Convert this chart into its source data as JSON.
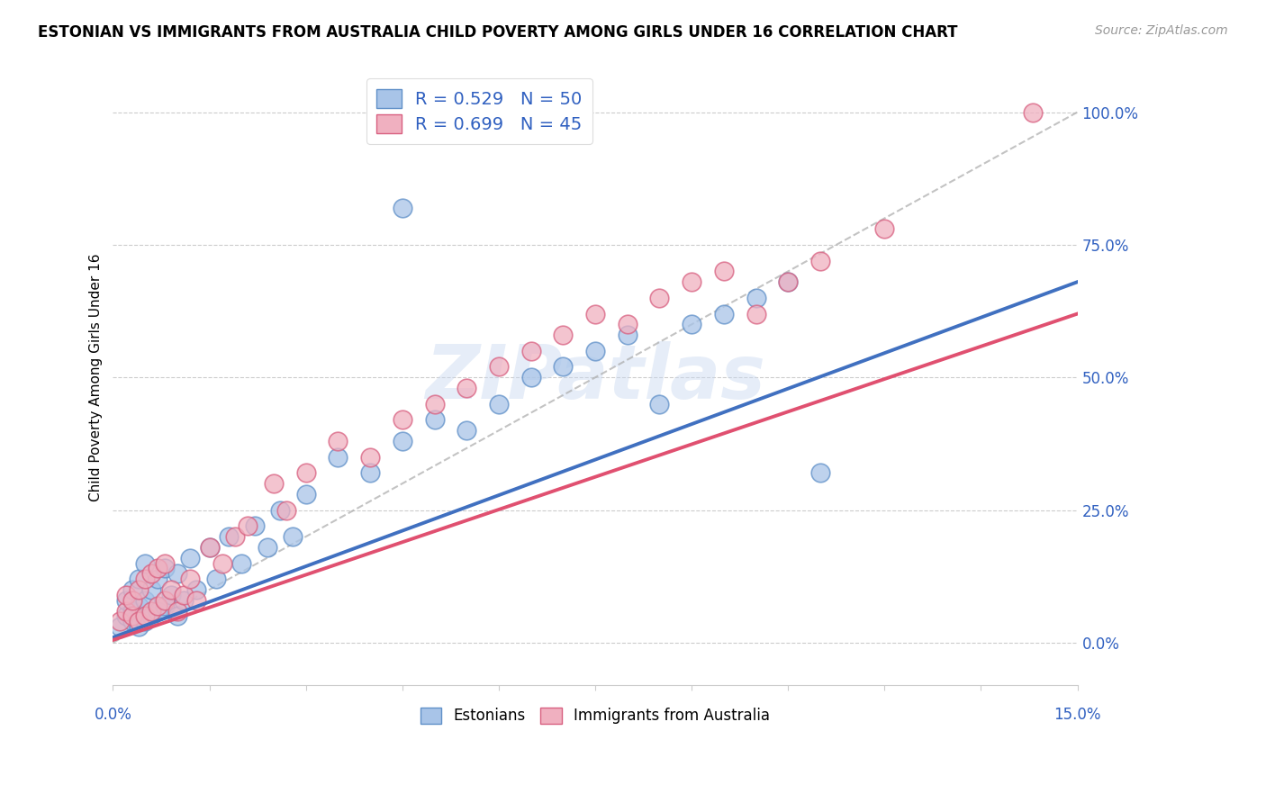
{
  "title": "ESTONIAN VS IMMIGRANTS FROM AUSTRALIA CHILD POVERTY AMONG GIRLS UNDER 16 CORRELATION CHART",
  "source": "Source: ZipAtlas.com",
  "ylabel": "Child Poverty Among Girls Under 16",
  "ylabel_right_ticks": [
    "0.0%",
    "25.0%",
    "50.0%",
    "75.0%",
    "100.0%"
  ],
  "ylabel_right_vals": [
    0.0,
    0.25,
    0.5,
    0.75,
    1.0
  ],
  "r_estonian": 0.529,
  "n_estonian": 50,
  "r_immigrant": 0.699,
  "n_immigrant": 45,
  "color_estonian_fill": "#a8c4e8",
  "color_estonian_edge": "#6090c8",
  "color_immigrant_fill": "#f0b0c0",
  "color_immigrant_edge": "#d86080",
  "color_trendline_estonian": "#4070c0",
  "color_trendline_immigrant": "#e05070",
  "color_legend_text": "#3060c0",
  "xmin": 0.0,
  "xmax": 0.15,
  "ymin": -0.08,
  "ymax": 1.08,
  "blue_x": [
    0.001,
    0.002,
    0.002,
    0.003,
    0.003,
    0.003,
    0.004,
    0.004,
    0.004,
    0.005,
    0.005,
    0.005,
    0.006,
    0.006,
    0.007,
    0.007,
    0.008,
    0.008,
    0.009,
    0.01,
    0.01,
    0.011,
    0.012,
    0.013,
    0.015,
    0.016,
    0.018,
    0.02,
    0.022,
    0.024,
    0.026,
    0.028,
    0.03,
    0.035,
    0.04,
    0.045,
    0.05,
    0.055,
    0.06,
    0.065,
    0.07,
    0.075,
    0.08,
    0.085,
    0.09,
    0.095,
    0.1,
    0.105,
    0.11,
    0.045
  ],
  "blue_y": [
    0.03,
    0.05,
    0.08,
    0.04,
    0.06,
    0.1,
    0.03,
    0.07,
    0.12,
    0.04,
    0.08,
    0.15,
    0.05,
    0.1,
    0.06,
    0.12,
    0.07,
    0.14,
    0.09,
    0.05,
    0.13,
    0.08,
    0.16,
    0.1,
    0.18,
    0.12,
    0.2,
    0.15,
    0.22,
    0.18,
    0.25,
    0.2,
    0.28,
    0.35,
    0.32,
    0.38,
    0.42,
    0.4,
    0.45,
    0.5,
    0.52,
    0.55,
    0.58,
    0.45,
    0.6,
    0.62,
    0.65,
    0.68,
    0.32,
    0.82
  ],
  "pink_x": [
    0.001,
    0.002,
    0.002,
    0.003,
    0.003,
    0.004,
    0.004,
    0.005,
    0.005,
    0.006,
    0.006,
    0.007,
    0.007,
    0.008,
    0.008,
    0.009,
    0.01,
    0.011,
    0.012,
    0.013,
    0.015,
    0.017,
    0.019,
    0.021,
    0.025,
    0.027,
    0.03,
    0.035,
    0.04,
    0.045,
    0.05,
    0.055,
    0.06,
    0.065,
    0.07,
    0.075,
    0.08,
    0.085,
    0.09,
    0.095,
    0.1,
    0.105,
    0.11,
    0.12,
    0.143
  ],
  "pink_y": [
    0.04,
    0.06,
    0.09,
    0.05,
    0.08,
    0.04,
    0.1,
    0.05,
    0.12,
    0.06,
    0.13,
    0.07,
    0.14,
    0.08,
    0.15,
    0.1,
    0.06,
    0.09,
    0.12,
    0.08,
    0.18,
    0.15,
    0.2,
    0.22,
    0.3,
    0.25,
    0.32,
    0.38,
    0.35,
    0.42,
    0.45,
    0.48,
    0.52,
    0.55,
    0.58,
    0.62,
    0.6,
    0.65,
    0.68,
    0.7,
    0.62,
    0.68,
    0.72,
    0.78,
    1.0
  ],
  "trendline_blue_x0": 0.0,
  "trendline_blue_y0": 0.01,
  "trendline_blue_x1": 0.15,
  "trendline_blue_y1": 0.68,
  "trendline_pink_x0": 0.0,
  "trendline_pink_y0": 0.005,
  "trendline_pink_x1": 0.15,
  "trendline_pink_y1": 0.62,
  "ref_line_x0": 0.0,
  "ref_line_y0": 0.0,
  "ref_line_x1": 0.15,
  "ref_line_y1": 1.0
}
